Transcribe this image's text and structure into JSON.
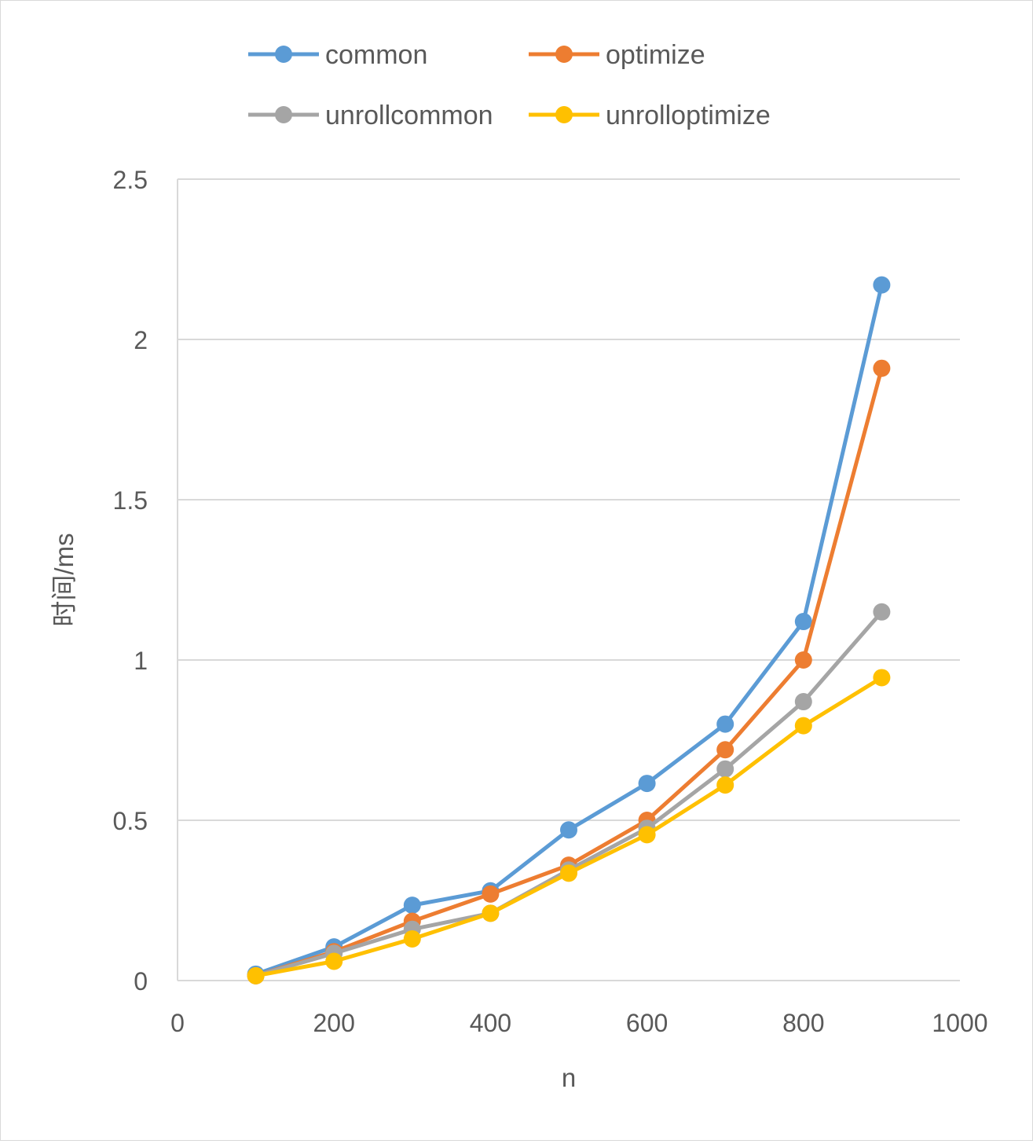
{
  "chart_data": {
    "type": "line",
    "title": "",
    "xlabel": "n",
    "ylabel": "时间/ms",
    "xlim": [
      0,
      1000
    ],
    "ylim": [
      0,
      2.5
    ],
    "x_ticks": [
      0,
      200,
      400,
      600,
      800,
      1000
    ],
    "y_ticks": [
      0,
      0.5,
      1,
      1.5,
      2,
      2.5
    ],
    "x_tick_labels": [
      "0",
      "200",
      "400",
      "600",
      "800",
      "1000"
    ],
    "y_tick_labels": [
      "0",
      "0.5",
      "1",
      "1.5",
      "2",
      "2.5"
    ],
    "grid": "horizontal",
    "legend_position": "top",
    "x": [
      100,
      200,
      300,
      400,
      500,
      600,
      700,
      800,
      900
    ],
    "series": [
      {
        "name": "common",
        "color": "#5B9BD5",
        "values": [
          0.02,
          0.105,
          0.235,
          0.28,
          0.47,
          0.615,
          0.8,
          1.12,
          2.17
        ]
      },
      {
        "name": "optimize",
        "color": "#ED7D31",
        "values": [
          0.015,
          0.09,
          0.185,
          0.27,
          0.36,
          0.5,
          0.72,
          1.0,
          1.91
        ]
      },
      {
        "name": "unrollcommon",
        "color": "#A5A5A5",
        "values": [
          0.015,
          0.085,
          0.16,
          0.21,
          0.345,
          0.475,
          0.66,
          0.87,
          1.15
        ]
      },
      {
        "name": "unrolloptimize",
        "color": "#FFC000",
        "values": [
          0.015,
          0.06,
          0.13,
          0.21,
          0.335,
          0.455,
          0.61,
          0.795,
          0.945
        ]
      }
    ]
  }
}
